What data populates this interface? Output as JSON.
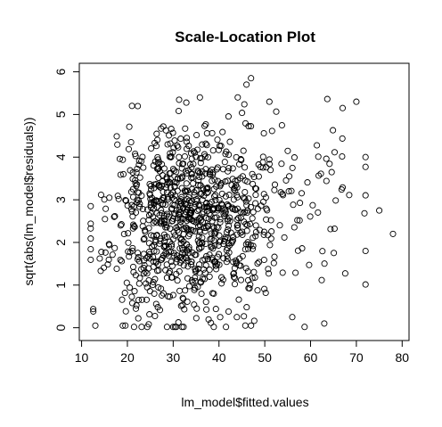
{
  "chart_data": {
    "type": "scatter",
    "title": "Scale-Location Plot",
    "xlabel": "lm_model$fitted.values",
    "ylabel": "sqrt(abs(lm_model$residuals))",
    "xlim": [
      9.5,
      81.5
    ],
    "ylim": [
      -0.3,
      6.2
    ],
    "xticks": [
      10,
      20,
      30,
      40,
      50,
      60,
      70,
      80
    ],
    "yticks": [
      0,
      1,
      2,
      3,
      4,
      5,
      6
    ],
    "grid": false,
    "legend": "none",
    "marker": "open-circle",
    "marker_color": "#000000",
    "n_points": 1000,
    "density": {
      "x_center": 33,
      "x_spread": 11,
      "y_center": 2.5,
      "y_spread": 1.1
    },
    "notable_points": [
      {
        "x": 47,
        "y": 5.85
      },
      {
        "x": 46,
        "y": 5.7
      },
      {
        "x": 51,
        "y": 5.3
      },
      {
        "x": 21,
        "y": 5.2
      },
      {
        "x": 70,
        "y": 5.3
      },
      {
        "x": 67,
        "y": 5.15
      },
      {
        "x": 78,
        "y": 2.2
      },
      {
        "x": 75,
        "y": 2.75
      },
      {
        "x": 12,
        "y": 2.85
      },
      {
        "x": 13,
        "y": 0.05
      },
      {
        "x": 47,
        "y": 0.05
      },
      {
        "x": 63,
        "y": 0.1
      },
      {
        "x": 72,
        "y": 1.8
      },
      {
        "x": 56,
        "y": 0.25
      },
      {
        "x": 19,
        "y": 0.05
      }
    ]
  }
}
